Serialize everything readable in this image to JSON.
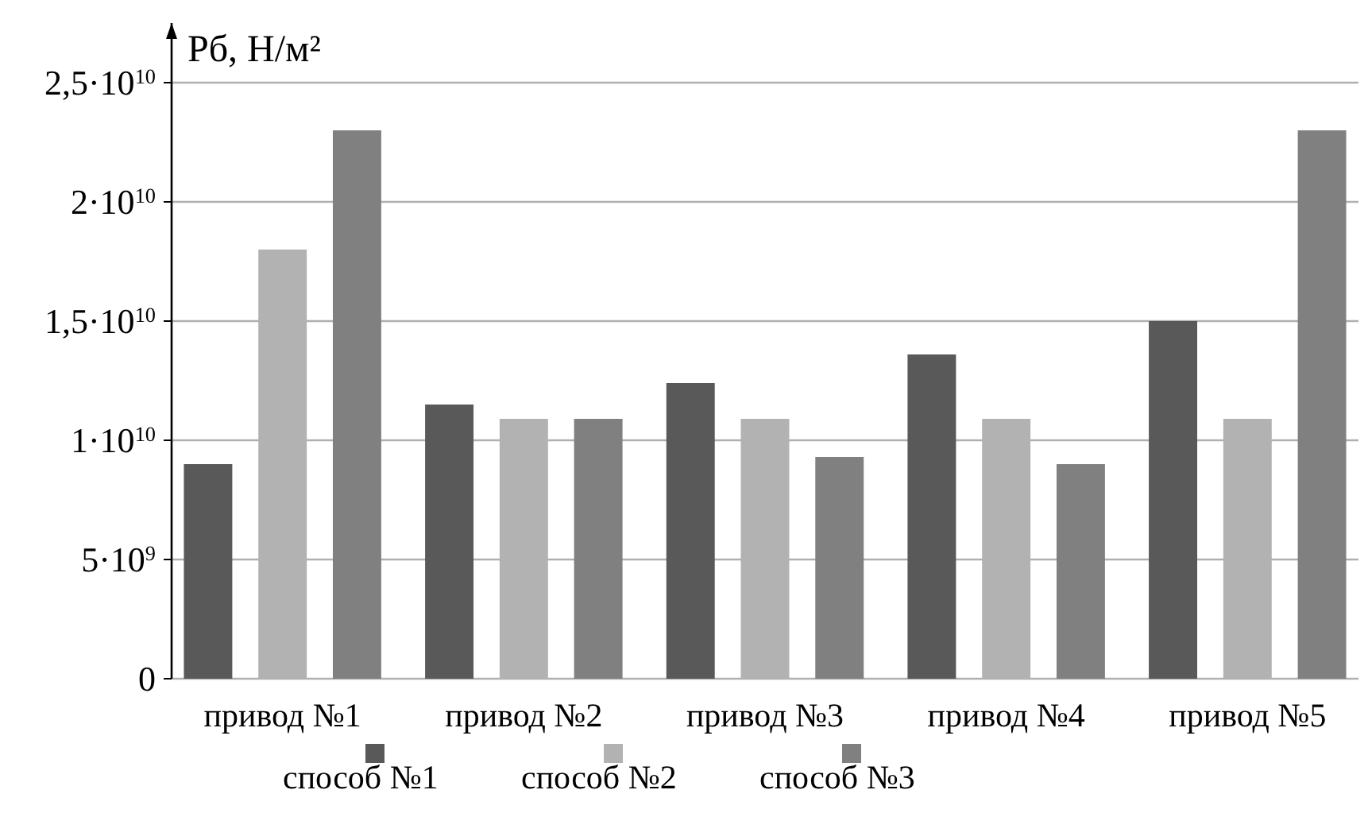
{
  "chart_data": {
    "type": "bar",
    "ylabel": "Pб, Н/м²",
    "categories": [
      "привод №1",
      "привод №2",
      "привод №3",
      "привод №4",
      "привод №5"
    ],
    "series": [
      {
        "name": "способ №1",
        "color": "#595959",
        "values": [
          9000000000,
          11500000000,
          12400000000,
          13600000000,
          15000000000
        ]
      },
      {
        "name": "способ №2",
        "color": "#b2b2b2",
        "values": [
          18000000000,
          10900000000,
          10900000000,
          10900000000,
          10900000000
        ]
      },
      {
        "name": "способ №3",
        "color": "#808080",
        "values": [
          23000000000,
          10900000000,
          9300000000,
          9000000000,
          23000000000
        ]
      }
    ],
    "ylim": [
      0,
      27500000000
    ],
    "yticks": [
      0,
      {
        "value": 5000000000,
        "label": "5·10$^{9}$"
      },
      {
        "value": 10000000000,
        "label": "1·10$^{10}$"
      },
      {
        "value": 15000000000,
        "label": "1,5·10$^{10}$"
      },
      {
        "value": 20000000000,
        "label": "2·10$^{10}$"
      },
      {
        "value": 25000000000,
        "label": "2,5·10$^{10}$"
      }
    ],
    "grid": "y",
    "legend": "bottom"
  }
}
